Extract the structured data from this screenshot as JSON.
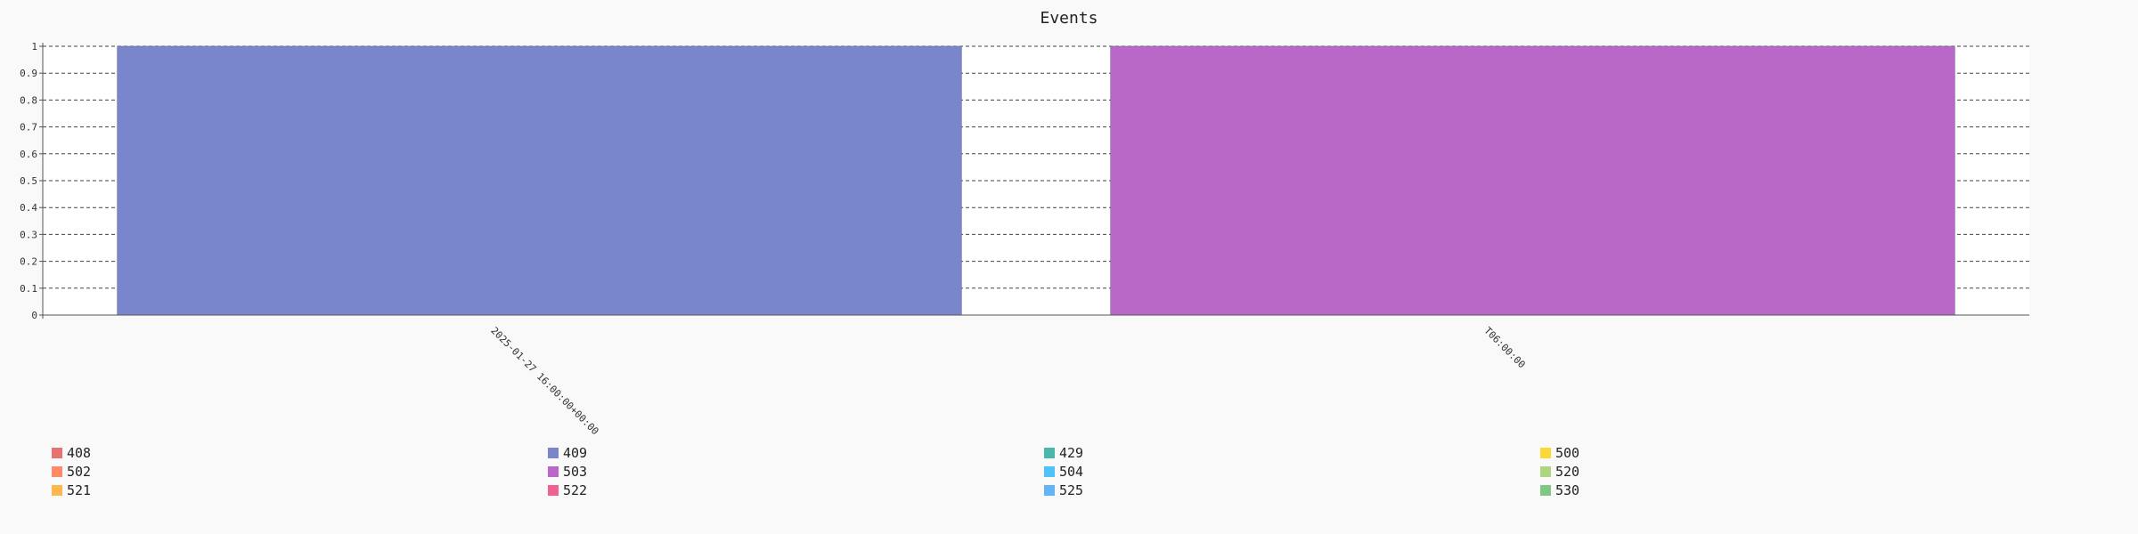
{
  "chart_data": {
    "type": "bar",
    "title": "Events",
    "xlabel": "",
    "ylabel": "",
    "ylim": [
      0,
      1
    ],
    "yticks": [
      "0",
      "0.1",
      "0.2",
      "0.3",
      "0.4",
      "0.5",
      "0.6",
      "0.7",
      "0.8",
      "0.9",
      "1"
    ],
    "grid": true,
    "categories": [
      "2025-01-27 16:00:00+00:00",
      "T06:00:00"
    ],
    "series": [
      {
        "name": "409",
        "color": "#7986cb",
        "values": [
          1,
          0
        ]
      },
      {
        "name": "503",
        "color": "#ba68c8",
        "values": [
          0,
          1
        ]
      }
    ],
    "legend_position": "bottom",
    "legend": [
      {
        "name": "408",
        "color": "#e57373"
      },
      {
        "name": "409",
        "color": "#7986cb"
      },
      {
        "name": "429",
        "color": "#4db6ac"
      },
      {
        "name": "500",
        "color": "#fdd835"
      },
      {
        "name": "502",
        "color": "#ff8a65"
      },
      {
        "name": "503",
        "color": "#ba68c8"
      },
      {
        "name": "504",
        "color": "#4fc3f7"
      },
      {
        "name": "520",
        "color": "#aed581"
      },
      {
        "name": "521",
        "color": "#ffb74d"
      },
      {
        "name": "522",
        "color": "#f06292"
      },
      {
        "name": "525",
        "color": "#64b5f6"
      },
      {
        "name": "530",
        "color": "#81c784"
      }
    ]
  }
}
